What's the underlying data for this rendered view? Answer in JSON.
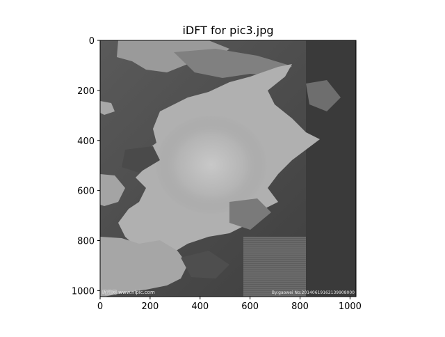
{
  "chart_data": {
    "type": "heatmap",
    "title": "iDFT for pic3.jpg",
    "xlabel": "",
    "ylabel": "",
    "xlim": [
      0,
      1024
    ],
    "ylim": [
      1024,
      0
    ],
    "x_ticks": [
      0,
      200,
      400,
      600,
      800,
      1000
    ],
    "y_ticks": [
      0,
      200,
      400,
      600,
      800,
      1000
    ],
    "colormap": "gray",
    "grid": false,
    "image_description": "grayscale reconstructed photograph",
    "watermark_left": "昵图网 www.nipic.com",
    "watermark_right": "By:gaowei No:20140619162139908000"
  },
  "colors": {
    "background": "#ffffff",
    "axes_frame": "#000000",
    "text": "#000000"
  }
}
